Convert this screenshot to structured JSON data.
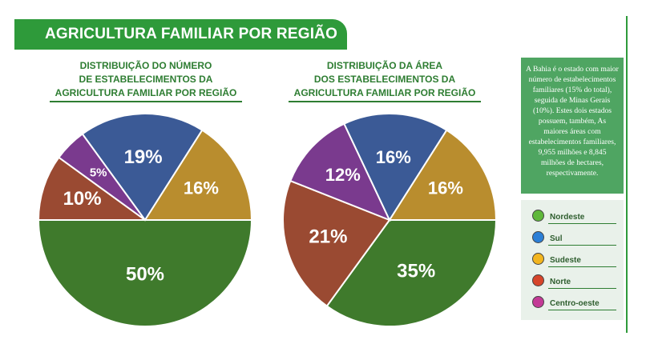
{
  "header": {
    "title": "AGRICULTURA FAMILIAR POR REGIÃO"
  },
  "charts": [
    {
      "title_lines": [
        "DISTRIBUIÇÃO DO NÚMERO",
        "DE ESTABELECIMENTOS DA",
        "AGRICULTURA FAMILIAR POR REGIÃO"
      ]
    },
    {
      "title_lines": [
        "DISTRIBUIÇÃO DA ÁREA",
        "DOS ESTABELECIMENTOS DA",
        "AGRICULTURA FAMILIAR POR REGIÃO"
      ]
    }
  ],
  "chart_data": [
    {
      "type": "pie",
      "title": "DISTRIBUIÇÃO DO NÚMERO DE ESTABELECIMENTOS DA AGRICULTURA FAMILIAR POR REGIÃO",
      "categories": [
        "Nordeste",
        "Norte",
        "Centro-oeste",
        "Sul",
        "Sudeste"
      ],
      "values": [
        50,
        10,
        5,
        19,
        16
      ],
      "labels": [
        "50%",
        "10%",
        "5%",
        "19%",
        "16%"
      ]
    },
    {
      "type": "pie",
      "title": "DISTRIBUIÇÃO DA ÁREA DOS ESTABELECIMENTOS DA AGRICULTURA FAMILIAR POR REGIÃO",
      "categories": [
        "Nordeste",
        "Norte",
        "Centro-oeste",
        "Sul",
        "Sudeste"
      ],
      "values": [
        35,
        21,
        12,
        16,
        16
      ],
      "labels": [
        "35%",
        "21%",
        "12%",
        "16%",
        "16%"
      ]
    }
  ],
  "slice_colors": {
    "Nordeste": "#3f7a2c",
    "Norte": "#9a4a32",
    "Centro-oeste": "#7a3a8e",
    "Sul": "#3b5a96",
    "Sudeste": "#b98d2e"
  },
  "note": {
    "text": "A Bahia é o estado com maior número de estabelecimentos familiares (15% do total), seguida de Minas Gerais (10%). Estes dois estados possuem, também, As maiores áreas com estabelecimentos familiares, 9,955 milhões e 8,845 milhões de hectares, respectivamente."
  },
  "legend": [
    {
      "label": "Nordeste",
      "color": "#5fb83b"
    },
    {
      "label": "Sul",
      "color": "#2b7fd6"
    },
    {
      "label": "Sudeste",
      "color": "#f2b51f"
    },
    {
      "label": "Norte",
      "color": "#d6452b"
    },
    {
      "label": "Centro-oeste",
      "color": "#c33a96"
    }
  ]
}
